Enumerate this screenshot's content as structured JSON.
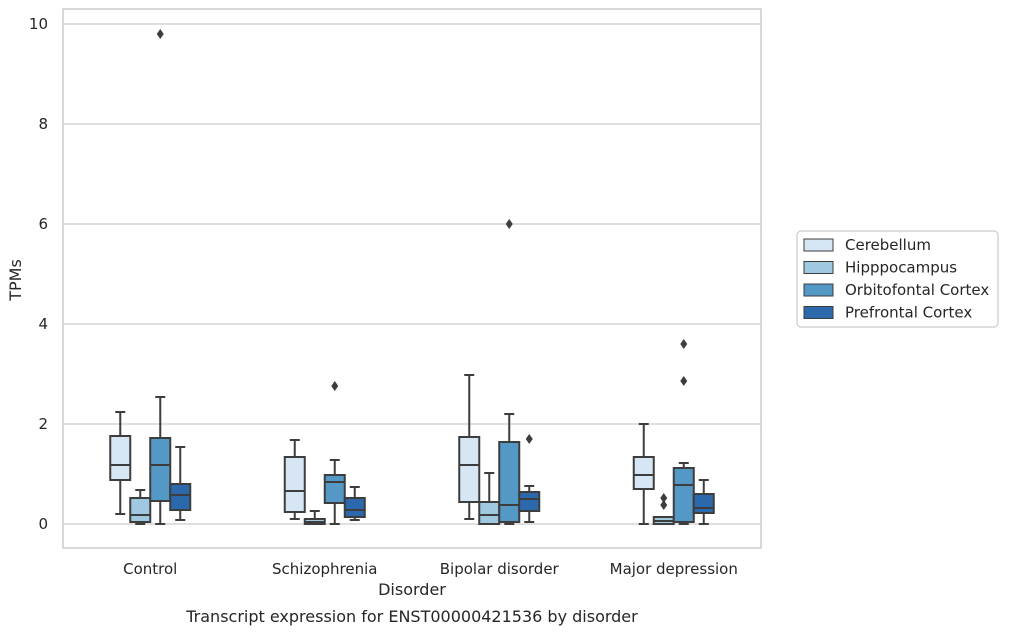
{
  "chart_data": {
    "type": "box",
    "xlabel": "Disorder",
    "ylabel": "TPMs",
    "caption": "Transcript expression for ENST00000421536 by disorder",
    "ylim": [
      -0.45,
      10.3
    ],
    "yticks": [
      0,
      2,
      4,
      6,
      8,
      10
    ],
    "grid": true,
    "legend_position": "right",
    "categories": [
      "Control",
      "Schizophrenia",
      "Bipolar disorder",
      "Major depression"
    ],
    "series": [
      {
        "name": "Cerebellum",
        "color": "#d6e6f4",
        "boxes": [
          {
            "whislo": 0.2,
            "q1": 0.88,
            "med": 1.18,
            "q3": 1.76,
            "whishi": 2.24,
            "fliers": []
          },
          {
            "whislo": 0.1,
            "q1": 0.24,
            "med": 0.66,
            "q3": 1.34,
            "whishi": 1.68,
            "fliers": []
          },
          {
            "whislo": 0.1,
            "q1": 0.44,
            "med": 1.18,
            "q3": 1.74,
            "whishi": 2.98,
            "fliers": []
          },
          {
            "whislo": 0.0,
            "q1": 0.7,
            "med": 0.98,
            "q3": 1.34,
            "whishi": 2.0,
            "fliers": []
          }
        ]
      },
      {
        "name": "Hipppocampus",
        "color": "#a0c8e0",
        "boxes": [
          {
            "whislo": 0.0,
            "q1": 0.04,
            "med": 0.18,
            "q3": 0.52,
            "whishi": 0.68,
            "fliers": []
          },
          {
            "whislo": 0.0,
            "q1": 0.0,
            "med": 0.04,
            "q3": 0.1,
            "whishi": 0.26,
            "fliers": []
          },
          {
            "whislo": 0.0,
            "q1": 0.0,
            "med": 0.18,
            "q3": 0.44,
            "whishi": 1.02,
            "fliers": []
          },
          {
            "whislo": 0.0,
            "q1": 0.0,
            "med": 0.06,
            "q3": 0.14,
            "whishi": 0.14,
            "fliers": [
              0.38,
              0.52
            ]
          }
        ]
      },
      {
        "name": "Orbitofontal Cortex",
        "color": "#5498c6",
        "boxes": [
          {
            "whislo": 0.0,
            "q1": 0.46,
            "med": 1.18,
            "q3": 1.72,
            "whishi": 2.54,
            "fliers": [
              9.8
            ]
          },
          {
            "whislo": 0.0,
            "q1": 0.42,
            "med": 0.84,
            "q3": 0.98,
            "whishi": 1.28,
            "fliers": [
              2.76
            ]
          },
          {
            "whislo": 0.0,
            "q1": 0.04,
            "med": 0.38,
            "q3": 1.64,
            "whishi": 2.2,
            "fliers": [
              6.0
            ]
          },
          {
            "whislo": 0.0,
            "q1": 0.04,
            "med": 0.78,
            "q3": 1.12,
            "whishi": 1.22,
            "fliers": [
              2.86,
              3.6
            ]
          }
        ]
      },
      {
        "name": "Prefrontal Cortex",
        "color": "#2c69ac",
        "boxes": [
          {
            "whislo": 0.08,
            "q1": 0.28,
            "med": 0.58,
            "q3": 0.8,
            "whishi": 1.54,
            "fliers": []
          },
          {
            "whislo": 0.08,
            "q1": 0.14,
            "med": 0.28,
            "q3": 0.52,
            "whishi": 0.74,
            "fliers": []
          },
          {
            "whislo": 0.04,
            "q1": 0.26,
            "med": 0.5,
            "q3": 0.64,
            "whishi": 0.76,
            "fliers": [
              1.7
            ]
          },
          {
            "whislo": 0.0,
            "q1": 0.22,
            "med": 0.32,
            "q3": 0.6,
            "whishi": 0.88,
            "fliers": []
          }
        ]
      }
    ]
  }
}
